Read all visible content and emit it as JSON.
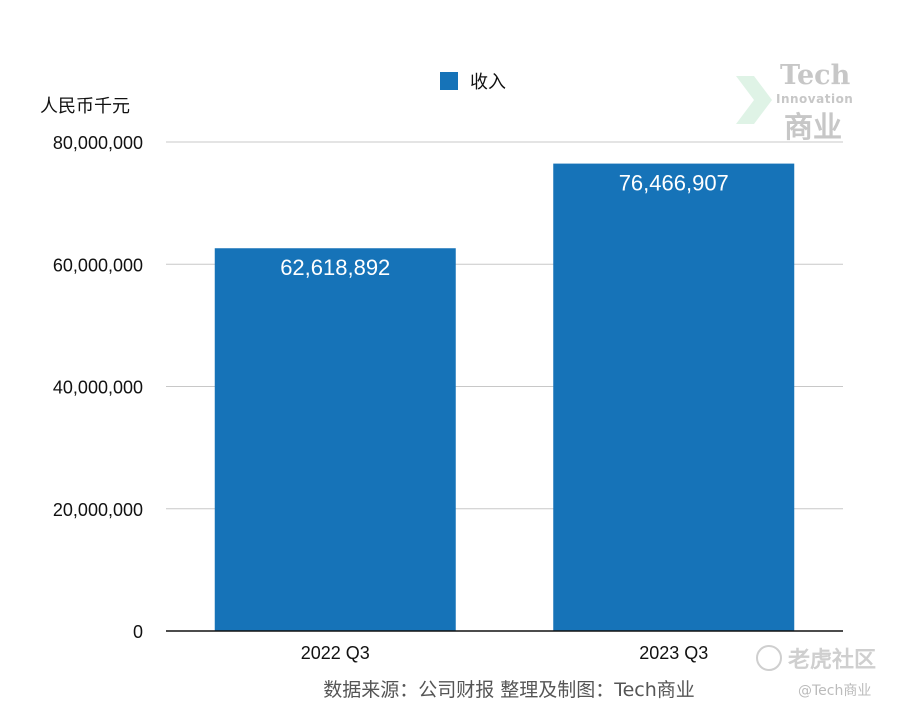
{
  "chart_data": {
    "type": "bar",
    "categories": [
      "2022 Q3",
      "2023 Q3"
    ],
    "series": [
      {
        "name": "收入",
        "values": [
          62618892,
          76466907
        ]
      }
    ],
    "data_labels": [
      "62,618,892",
      "76,466,907"
    ],
    "ylabel": "人民币千元",
    "ylim": [
      0,
      80000000
    ],
    "yticks": [
      0,
      20000000,
      40000000,
      60000000,
      80000000
    ],
    "ytick_labels": [
      "0",
      "20,000,000",
      "40,000,000",
      "60,000,000",
      "80,000,000"
    ],
    "grid": true,
    "legend_position": "top-center",
    "bar_color": "#1673b8"
  },
  "source_note": "数据来源：公司财报 整理及制图：Tech商业",
  "watermarks": {
    "tech_en": "Tech",
    "tech_sub": "Innovation",
    "tech_cn": "商业",
    "tiger": "老虎社区",
    "handle": "@Tech商业"
  }
}
